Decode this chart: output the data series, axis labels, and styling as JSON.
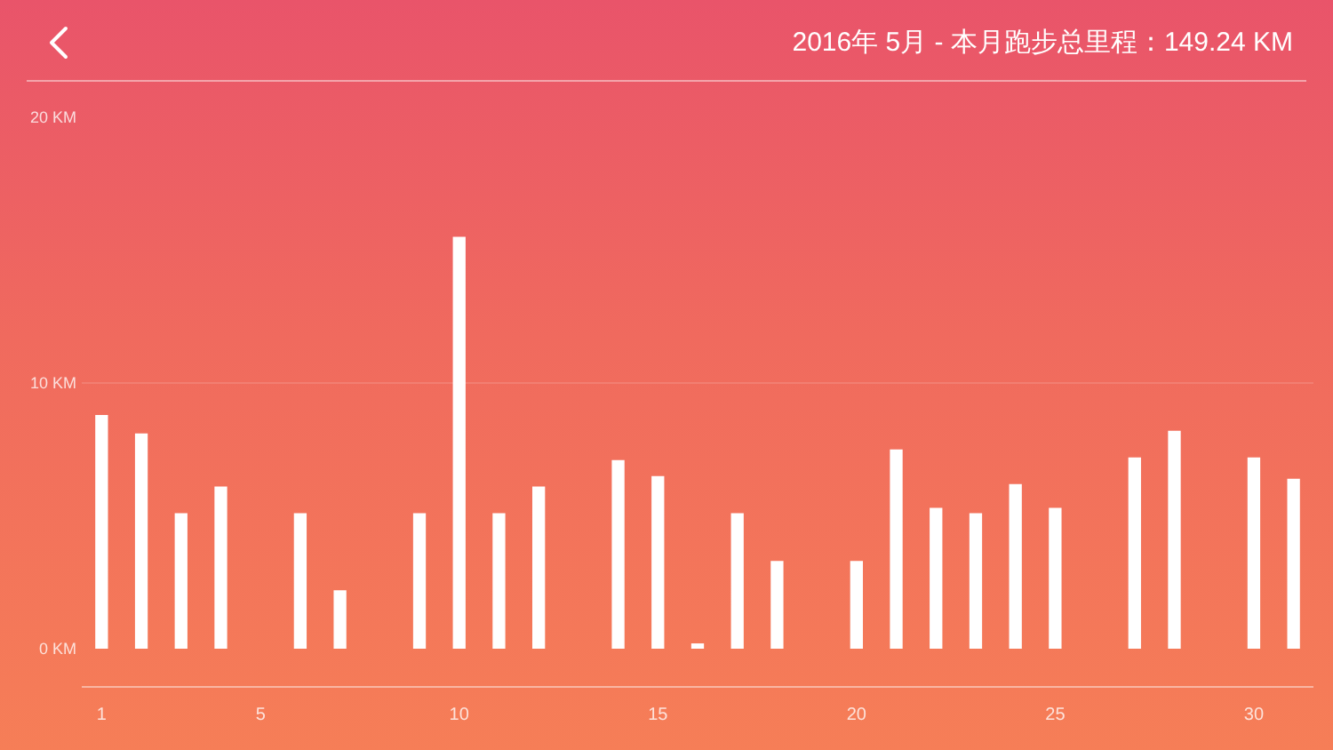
{
  "chart_data": {
    "type": "bar",
    "title": "2016年 5月 - 本月跑步总里程：149.24 KM",
    "x": [
      1,
      2,
      3,
      4,
      5,
      6,
      7,
      8,
      9,
      10,
      11,
      12,
      13,
      14,
      15,
      16,
      17,
      18,
      19,
      20,
      21,
      22,
      23,
      24,
      25,
      26,
      27,
      28,
      29,
      30,
      31
    ],
    "values": [
      8.8,
      8.1,
      5.1,
      6.1,
      0,
      5.1,
      2.2,
      0,
      5.1,
      15.5,
      5.1,
      6.1,
      0,
      7.1,
      6.5,
      0.2,
      5.1,
      3.3,
      0,
      3.3,
      7.5,
      5.3,
      5.1,
      6.2,
      5.3,
      0,
      7.2,
      8.2,
      0,
      7.2,
      6.4
    ],
    "color": "#ffffff",
    "xlim": [
      0.5,
      31.5
    ],
    "xticks": [
      1,
      5,
      10,
      15,
      20,
      25,
      30
    ],
    "ylim": [
      0,
      20
    ],
    "yticks": [
      {
        "value": 0,
        "label": "0 KM"
      },
      {
        "value": 10,
        "label": "10 KM"
      },
      {
        "value": 20,
        "label": "20 KM"
      }
    ],
    "grid": "y"
  }
}
